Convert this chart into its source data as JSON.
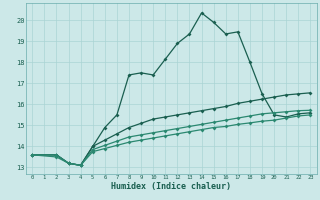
{
  "xlabel": "Humidex (Indice chaleur)",
  "xlim": [
    -0.5,
    23.5
  ],
  "ylim": [
    12.7,
    20.8
  ],
  "yticks": [
    13,
    14,
    15,
    16,
    17,
    18,
    19,
    20
  ],
  "xticks": [
    0,
    1,
    2,
    3,
    4,
    5,
    6,
    7,
    8,
    9,
    10,
    11,
    12,
    13,
    14,
    15,
    16,
    17,
    18,
    19,
    20,
    21,
    22,
    23
  ],
  "bg_color": "#cce8e8",
  "line_color_dark": "#1a5f50",
  "line_color_mid": "#2a8870",
  "grid_color": "#aad4d4",
  "line1_x": [
    0,
    2,
    3,
    4,
    5,
    6,
    7,
    8,
    9,
    10,
    11,
    12,
    13,
    14,
    15,
    16,
    17,
    18,
    19,
    20,
    21,
    22,
    23
  ],
  "line1_y": [
    13.6,
    13.6,
    13.2,
    13.1,
    14.0,
    14.9,
    15.5,
    17.4,
    17.5,
    17.4,
    18.15,
    18.9,
    19.35,
    20.35,
    19.9,
    19.35,
    19.45,
    18.0,
    16.5,
    15.5,
    15.4,
    15.55,
    15.6
  ],
  "line2_x": [
    0,
    2,
    3,
    4,
    5,
    6,
    7,
    8,
    9,
    10,
    11,
    12,
    13,
    14,
    15,
    16,
    17,
    18,
    19,
    20,
    21,
    22,
    23
  ],
  "line2_y": [
    13.6,
    13.6,
    13.2,
    13.1,
    14.0,
    14.3,
    14.6,
    14.9,
    15.1,
    15.3,
    15.4,
    15.5,
    15.6,
    15.7,
    15.8,
    15.9,
    16.05,
    16.15,
    16.25,
    16.35,
    16.45,
    16.5,
    16.55
  ],
  "line3_x": [
    0,
    2,
    3,
    4,
    5,
    6,
    7,
    8,
    9,
    10,
    11,
    12,
    13,
    14,
    15,
    16,
    17,
    18,
    19,
    20,
    21,
    22,
    23
  ],
  "line3_y": [
    13.6,
    13.6,
    13.2,
    13.1,
    13.85,
    14.05,
    14.25,
    14.45,
    14.55,
    14.65,
    14.75,
    14.85,
    14.95,
    15.05,
    15.15,
    15.25,
    15.35,
    15.45,
    15.55,
    15.6,
    15.65,
    15.7,
    15.72
  ],
  "line4_x": [
    0,
    2,
    3,
    4,
    5,
    6,
    7,
    8,
    9,
    10,
    11,
    12,
    13,
    14,
    15,
    16,
    17,
    18,
    19,
    20,
    21,
    22,
    23
  ],
  "line4_y": [
    13.6,
    13.5,
    13.2,
    13.1,
    13.75,
    13.9,
    14.05,
    14.2,
    14.3,
    14.4,
    14.5,
    14.6,
    14.7,
    14.8,
    14.9,
    14.95,
    15.05,
    15.12,
    15.2,
    15.25,
    15.35,
    15.45,
    15.5
  ]
}
